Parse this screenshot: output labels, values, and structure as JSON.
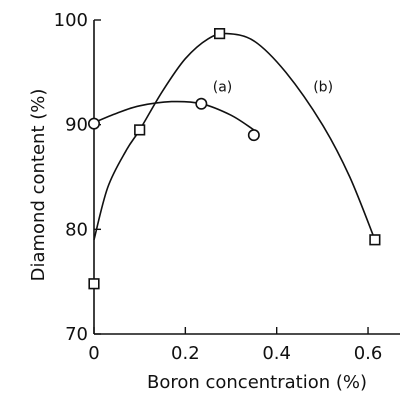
{
  "chart_data": {
    "type": "line",
    "xlabel": "Boron concentration (%)",
    "ylabel": "Diamond content (%)",
    "xlim": [
      0,
      0.67
    ],
    "ylim": [
      70,
      100
    ],
    "xticks": [
      0,
      0.2,
      0.4,
      0.6
    ],
    "xtick_labels": [
      "0",
      "0.2",
      "0.4",
      "0.6"
    ],
    "yticks": [
      70,
      80,
      90,
      100
    ],
    "ytick_labels": [
      "70",
      "80",
      "90",
      "100"
    ],
    "grid": false,
    "series": [
      {
        "name": "(a)",
        "marker": "circle",
        "points": [
          {
            "x": 0.0,
            "y": 90.1
          },
          {
            "x": 0.235,
            "y": 92.0
          },
          {
            "x": 0.35,
            "y": 89.0
          }
        ],
        "curve": [
          {
            "x": 0.0,
            "y": 90.2
          },
          {
            "x": 0.05,
            "y": 91.1
          },
          {
            "x": 0.1,
            "y": 91.8
          },
          {
            "x": 0.17,
            "y": 92.2
          },
          {
            "x": 0.235,
            "y": 92.0
          },
          {
            "x": 0.3,
            "y": 90.9
          },
          {
            "x": 0.35,
            "y": 89.5
          }
        ]
      },
      {
        "name": "(b)",
        "marker": "square",
        "points": [
          {
            "x": 0.0,
            "y": 74.8
          },
          {
            "x": 0.1,
            "y": 89.5
          },
          {
            "x": 0.275,
            "y": 98.7
          },
          {
            "x": 0.615,
            "y": 79.0
          }
        ],
        "curve": [
          {
            "x": 0.0,
            "y": 79.0
          },
          {
            "x": 0.03,
            "y": 84.0
          },
          {
            "x": 0.07,
            "y": 87.5
          },
          {
            "x": 0.1,
            "y": 89.5
          },
          {
            "x": 0.15,
            "y": 93.2
          },
          {
            "x": 0.2,
            "y": 96.3
          },
          {
            "x": 0.25,
            "y": 98.2
          },
          {
            "x": 0.29,
            "y": 98.7
          },
          {
            "x": 0.35,
            "y": 98.0
          },
          {
            "x": 0.42,
            "y": 95.0
          },
          {
            "x": 0.5,
            "y": 90.0
          },
          {
            "x": 0.56,
            "y": 85.0
          },
          {
            "x": 0.615,
            "y": 79.0
          }
        ]
      }
    ],
    "annotations": [
      {
        "text": "(a)",
        "x": 0.26,
        "y": 92.0
      },
      {
        "text": "(b)",
        "x": 0.48,
        "y": 92.0
      }
    ]
  }
}
